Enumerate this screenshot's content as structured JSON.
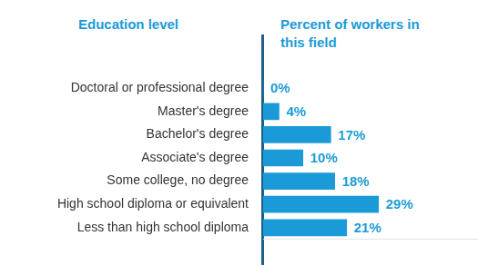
{
  "chart_data": {
    "type": "bar",
    "orientation": "horizontal",
    "ylabel": "Education level",
    "xlabel": "Percent of workers in this field",
    "categories": [
      "Doctoral or professional degree",
      "Master's degree",
      "Bachelor's degree",
      "Associate's degree",
      "Some college, no degree",
      "High school diploma or equivalent",
      "Less than high school diploma"
    ],
    "values": [
      0,
      4,
      17,
      10,
      18,
      29,
      21
    ],
    "value_labels": [
      "0%",
      "4%",
      "17%",
      "10%",
      "18%",
      "29%",
      "21%"
    ],
    "color": "#1a9bd7",
    "xlim": [
      0,
      54
    ],
    "data_labels": true,
    "tick_labels": "y",
    "grid": false
  }
}
